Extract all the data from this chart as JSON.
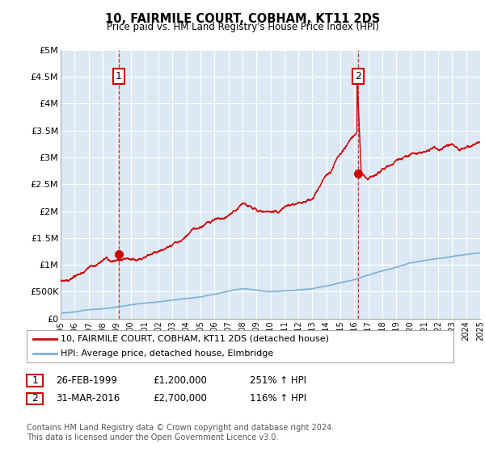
{
  "title": "10, FAIRMILE COURT, COBHAM, KT11 2DS",
  "subtitle": "Price paid vs. HM Land Registry's House Price Index (HPI)",
  "ylim": [
    0,
    5000000
  ],
  "yticks": [
    0,
    500000,
    1000000,
    1500000,
    2000000,
    2500000,
    3000000,
    3500000,
    4000000,
    4500000,
    5000000
  ],
  "ytick_labels": [
    "£0",
    "£500K",
    "£1M",
    "£1.5M",
    "£2M",
    "£2.5M",
    "£3M",
    "£3.5M",
    "£4M",
    "£4.5M",
    "£5M"
  ],
  "sale1": {
    "date_num": 1999.15,
    "price": 1200000,
    "label": "1"
  },
  "sale2": {
    "date_num": 2016.25,
    "price": 2700000,
    "label": "2"
  },
  "legend_line1": "10, FAIRMILE COURT, COBHAM, KT11 2DS (detached house)",
  "legend_line2": "HPI: Average price, detached house, Elmbridge",
  "red_color": "#cc0000",
  "blue_color": "#7bafd4",
  "chart_bg": "#dce9f5",
  "grid_color": "#ffffff",
  "background_color": "#ffffff",
  "footnote": "Contains HM Land Registry data © Crown copyright and database right 2024.\nThis data is licensed under the Open Government Licence v3.0."
}
